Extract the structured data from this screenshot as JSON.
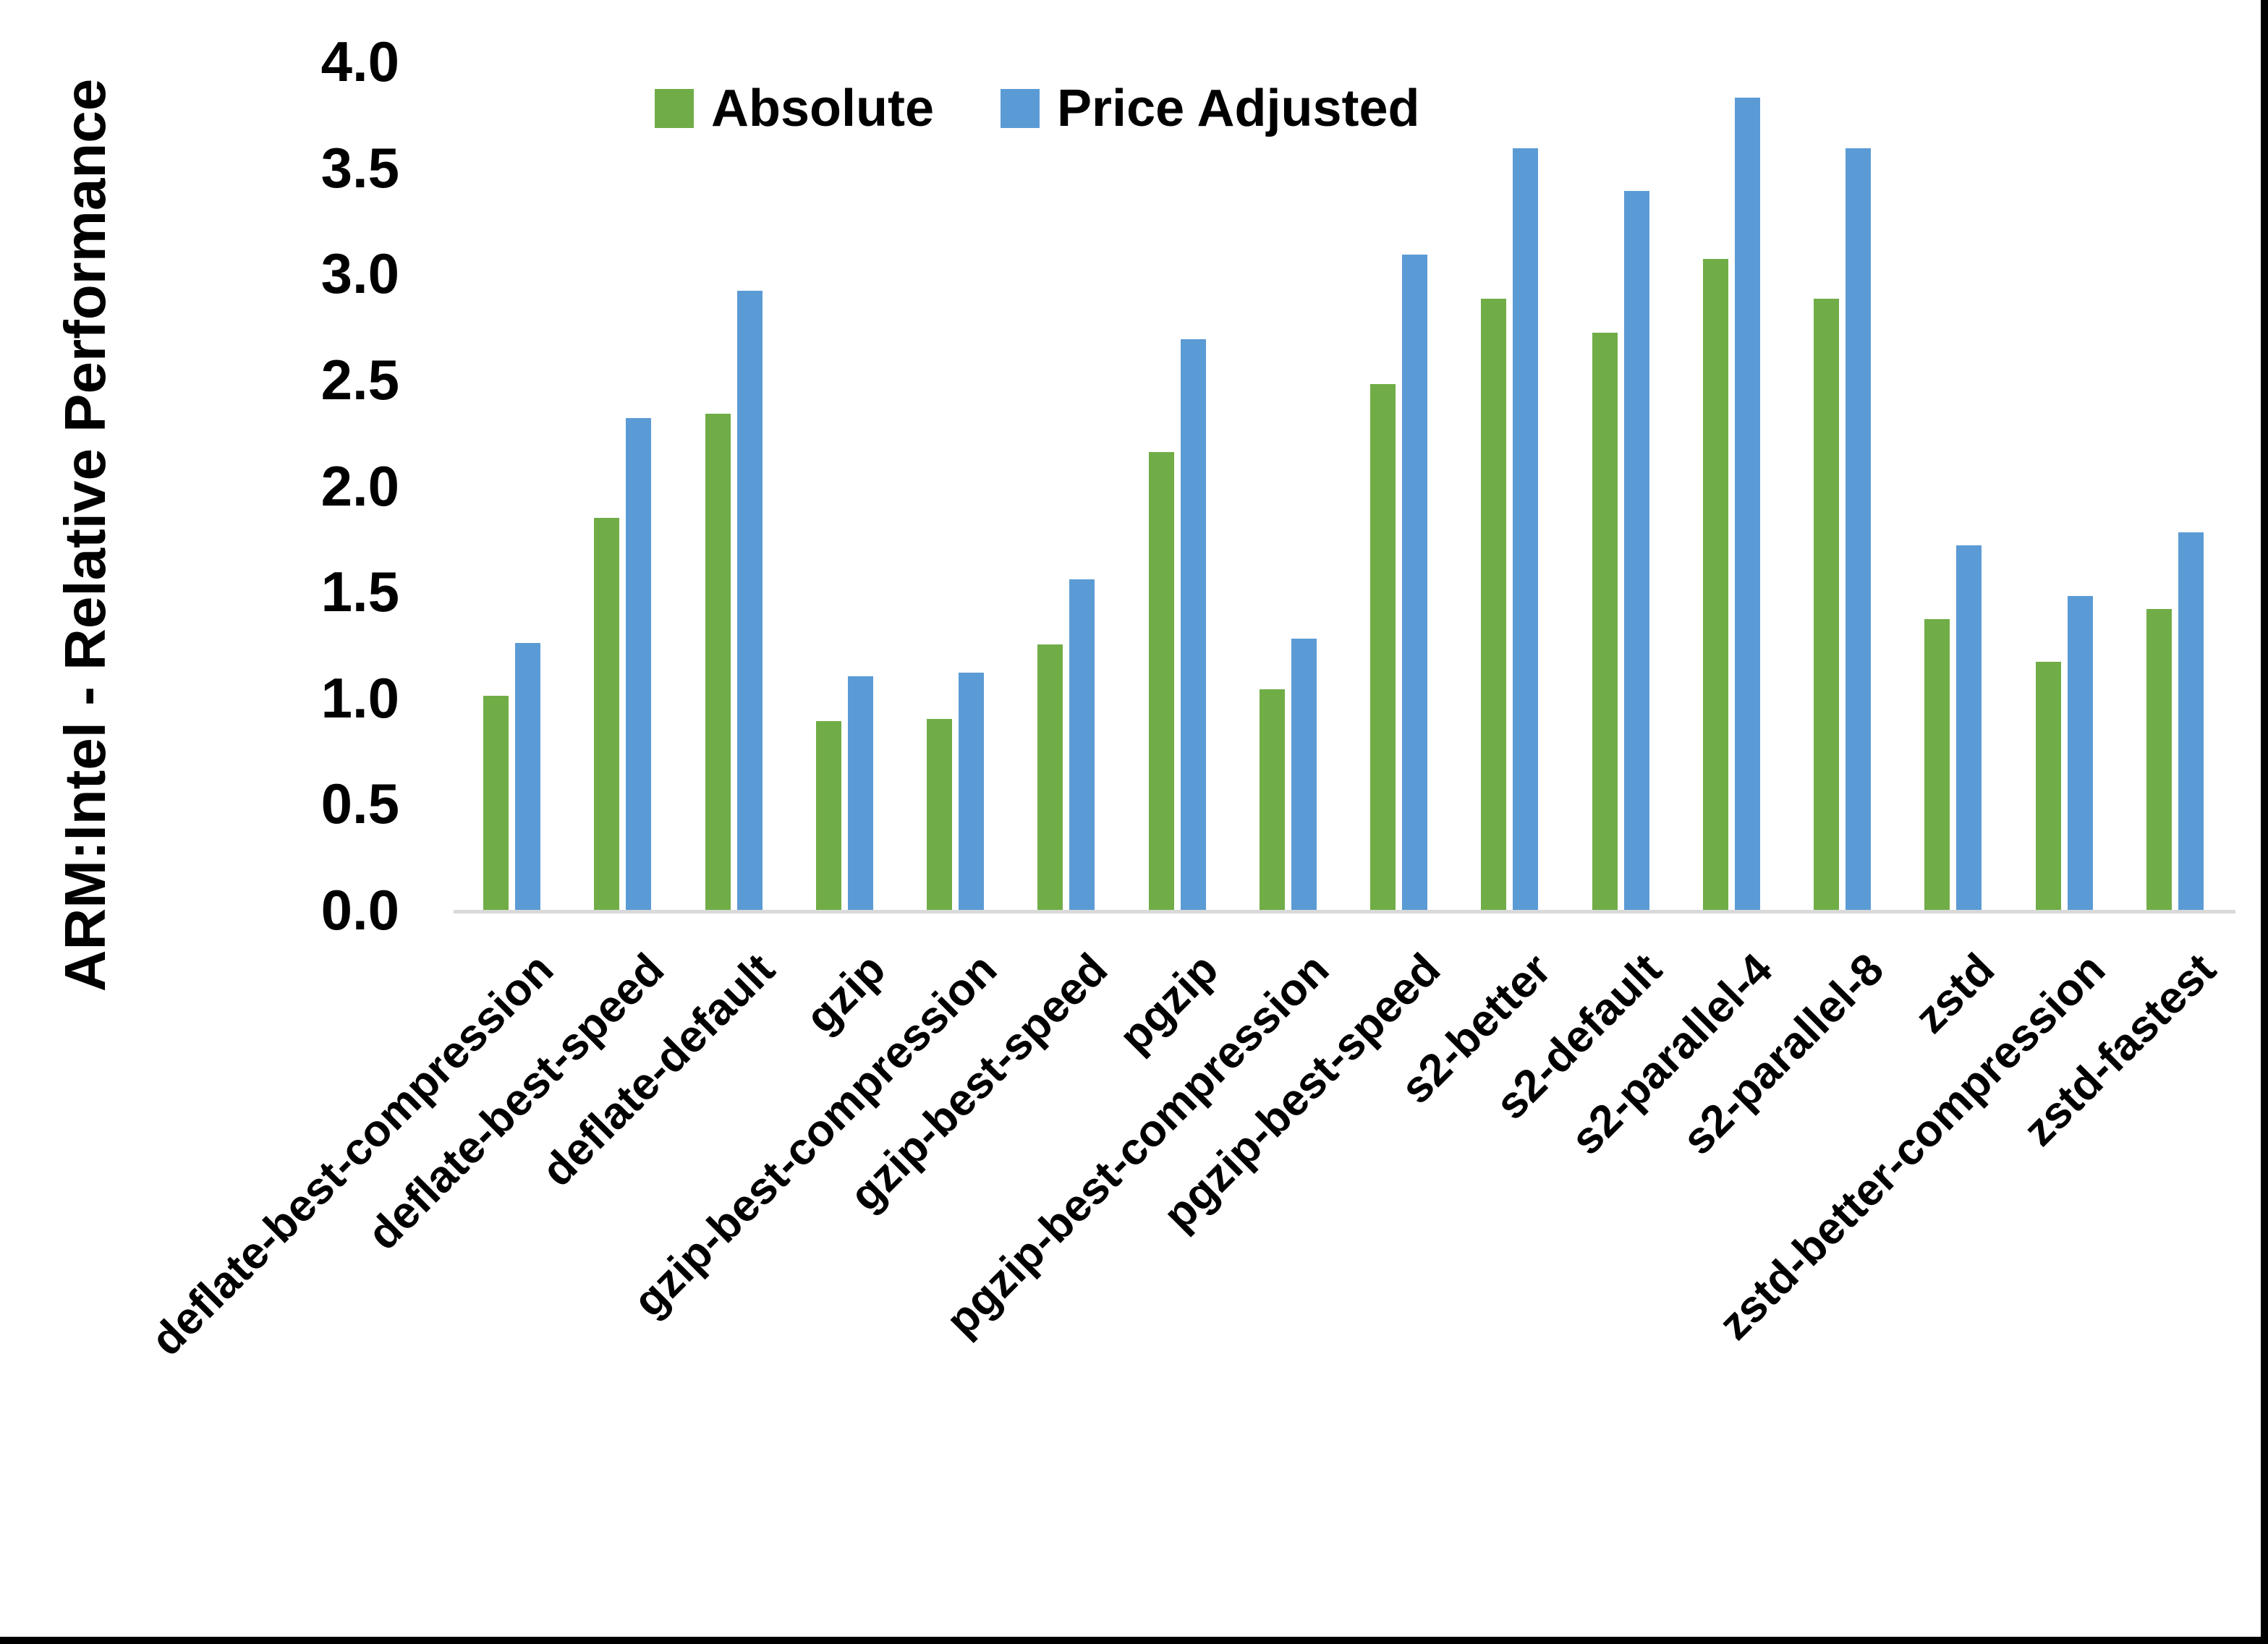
{
  "chart_data": {
    "type": "bar",
    "title": "",
    "ylabel": "ARM:Intel - Relative Performance",
    "xlabel": "",
    "ylim": [
      0,
      4
    ],
    "ytick_step": 0.5,
    "yticks": [
      "4.0",
      "3.5",
      "3.0",
      "2.5",
      "2.0",
      "1.5",
      "1.0",
      "0.5",
      "0.0"
    ],
    "grid": false,
    "legend_position": "top-center",
    "categories": [
      "deflate-best-compression",
      "deflate-best-speed",
      "deflate-default",
      "gzip",
      "gzip-best-compression",
      "gzip-best-speed",
      "pgzip",
      "pgzip-best-compression",
      "pgzip-best-speed",
      "s2-better",
      "s2-default",
      "s2-parallel-4",
      "s2-parallel-8",
      "zstd",
      "zstd-better-compression",
      "zstd-fastest"
    ],
    "series": [
      {
        "name": "Absolute",
        "color": "#70AD47",
        "values": [
          1.01,
          1.85,
          2.34,
          0.89,
          0.9,
          1.25,
          2.16,
          1.04,
          2.48,
          2.88,
          2.72,
          3.07,
          2.88,
          1.37,
          1.17,
          1.42
        ]
      },
      {
        "name": "Price Adjusted",
        "color": "#5B9BD5",
        "values": [
          1.26,
          2.32,
          2.92,
          1.1,
          1.12,
          1.56,
          2.69,
          1.28,
          3.09,
          3.59,
          3.39,
          3.83,
          3.59,
          1.72,
          1.48,
          1.78
        ]
      }
    ],
    "axis_line_color": "#D9D9D9",
    "text_color": "#000000",
    "background": "#FFFFFF"
  }
}
